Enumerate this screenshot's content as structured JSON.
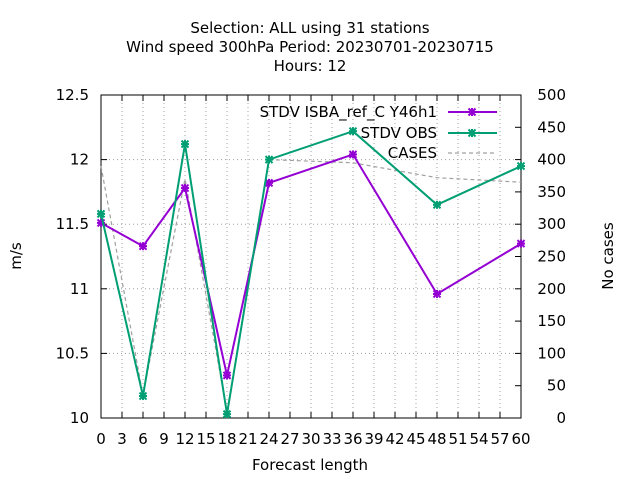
{
  "chart_data": {
    "type": "line",
    "title": [
      "Selection: ALL using    31 stations",
      "Wind speed 300hPa   Period: 20230701-20230715",
      "Hours:  12"
    ],
    "xlabel": "Forecast length",
    "ylabel": "m/s",
    "y2label": "No cases",
    "xlim": [
      0,
      60
    ],
    "ylim": [
      10,
      12.5
    ],
    "y2lim": [
      0,
      500
    ],
    "xticks": [
      0,
      3,
      6,
      9,
      12,
      15,
      18,
      21,
      24,
      27,
      30,
      33,
      36,
      39,
      42,
      45,
      48,
      51,
      54,
      57,
      60
    ],
    "yticks": [
      "10",
      "10.5",
      "11",
      "11.5",
      "12",
      "12.5"
    ],
    "y2ticks": [
      "0",
      "50",
      "100",
      "150",
      "200",
      "250",
      "300",
      "350",
      "400",
      "450",
      "500"
    ],
    "grid": true,
    "legend_position": "top-right",
    "series": [
      {
        "name": "STDV ISBA_ref_C Y46h1",
        "color": "#9400d3",
        "marker": "x",
        "axis": "y",
        "x": [
          0,
          6,
          12,
          18,
          24,
          36,
          48,
          60
        ],
        "values": [
          11.51,
          11.33,
          11.78,
          10.33,
          11.82,
          12.04,
          10.96,
          11.35
        ]
      },
      {
        "name": "STDV OBS",
        "color": "#009e73",
        "marker": "x",
        "axis": "y",
        "x": [
          0,
          6,
          12,
          18,
          24,
          36,
          48,
          60
        ],
        "values": [
          11.58,
          10.17,
          12.12,
          10.03,
          12.0,
          12.22,
          11.65,
          11.95
        ]
      },
      {
        "name": "CASES",
        "color": "#a0a0a0",
        "marker": "none",
        "dashed": true,
        "axis": "y2",
        "x": [
          0,
          6,
          12,
          18,
          24,
          36,
          48,
          60
        ],
        "values": [
          390,
          35,
          370,
          10,
          400,
          395,
          372,
          365
        ]
      }
    ]
  }
}
